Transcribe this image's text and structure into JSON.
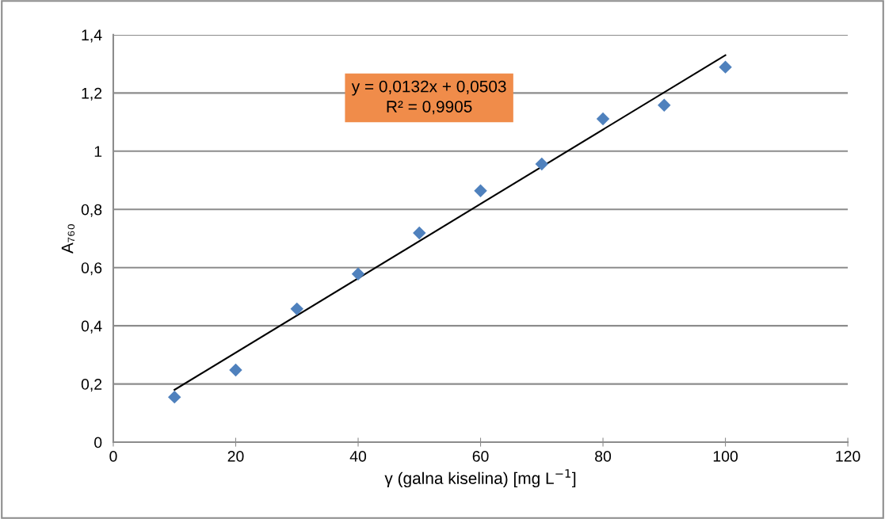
{
  "chart_data": {
    "type": "scatter",
    "xlabel": "γ (galna kiselina) [mg L$^{−1}$]",
    "ylabel": "A₇₆₀",
    "annotations": [
      "y = 0,0132x + 0,0503\nR² = 0,9905"
    ],
    "series": [
      {
        "color": "#4f81bd",
        "marker": "diamond",
        "x": [
          10,
          20,
          30,
          40,
          50,
          60,
          70,
          80,
          90,
          100
        ],
        "values": [
          0.155,
          0.248,
          0.458,
          0.578,
          0.719,
          0.864,
          0.956,
          1.111,
          1.158,
          1.289
        ]
      },
      {
        "type": "line",
        "color": "#000000",
        "marker": "none",
        "line_style": "solid",
        "x": [
          10,
          100
        ],
        "values": [
          0.18,
          1.33
        ]
      }
    ],
    "xlim": [
      0,
      120
    ],
    "xticks": [
      0,
      20,
      40,
      60,
      80,
      100,
      120
    ],
    "ylim": [
      0,
      1.4
    ],
    "yticks": [
      0,
      {
        "value": 0.2,
        "label": "0,2"
      },
      {
        "value": 0.4,
        "label": "0,4"
      },
      {
        "value": 0.6,
        "label": "0,6"
      },
      {
        "value": 0.8,
        "label": "0,8"
      },
      1,
      {
        "value": 1.2,
        "label": "1,2"
      },
      {
        "value": 1.4,
        "label": "1,4"
      }
    ],
    "grid": "y"
  }
}
